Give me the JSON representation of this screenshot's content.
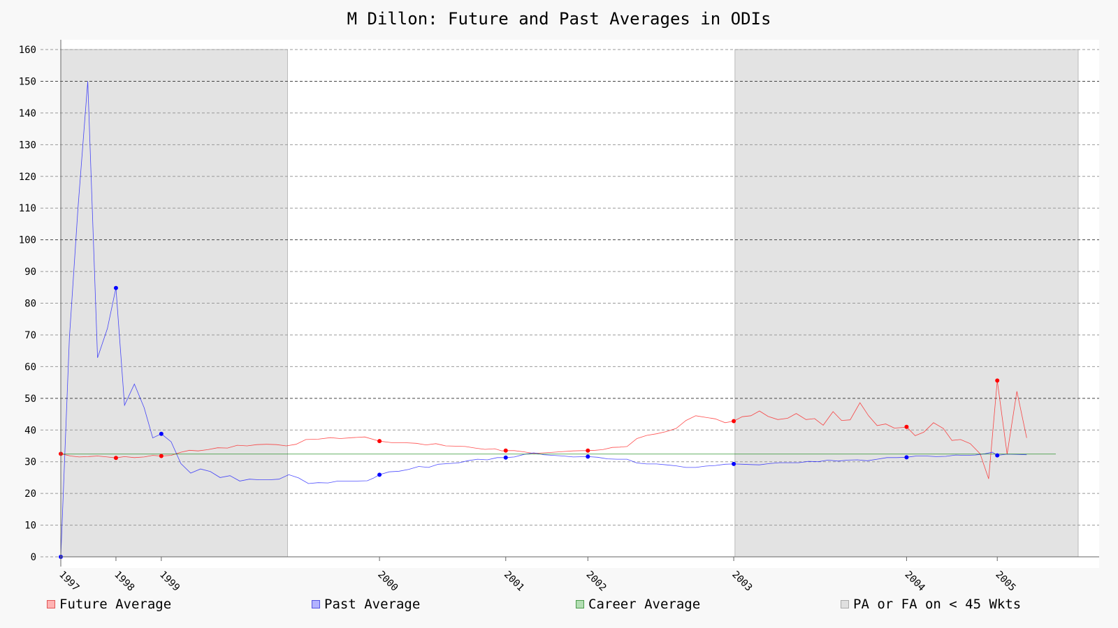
{
  "chart_data": {
    "type": "line",
    "title": "M Dillon: Future and Past Averages in ODIs",
    "xlabel": "",
    "ylabel": "",
    "ylim": [
      0,
      160
    ],
    "xlim": [
      1997.0,
      2005.3
    ],
    "yticks": [
      0,
      10,
      20,
      30,
      40,
      50,
      60,
      70,
      80,
      90,
      100,
      110,
      120,
      130,
      140,
      150,
      160
    ],
    "xticks": [
      {
        "label": "1997",
        "x": 1997.0
      },
      {
        "label": "1998",
        "x": 1997.45
      },
      {
        "label": "1999",
        "x": 1997.82
      },
      {
        "label": "2000",
        "x": 1999.6
      },
      {
        "label": "2001",
        "x": 2000.63
      },
      {
        "label": "2002",
        "x": 2001.3
      },
      {
        "label": "2003",
        "x": 2002.49
      },
      {
        "label": "2004",
        "x": 2003.9
      },
      {
        "label": "2005",
        "x": 2004.64
      }
    ],
    "grid": true,
    "legend_position": "bottom",
    "career_average": 32.4,
    "shaded_regions": [
      {
        "label": "PA or FA on < 45 Wkts",
        "from": 1997.0,
        "to": 1998.85
      },
      {
        "label": "PA or FA on < 45 Wkts",
        "from": 2002.5,
        "to": 2005.3
      }
    ],
    "series": [
      {
        "name": "Future Average",
        "color": "#ff0000",
        "points": [
          [
            1997.0,
            32.5
          ],
          [
            1997.08,
            31.8
          ],
          [
            1997.15,
            31.5
          ],
          [
            1997.22,
            31.6
          ],
          [
            1997.3,
            31.8
          ],
          [
            1997.38,
            31.5
          ],
          [
            1997.45,
            31.2
          ],
          [
            1997.52,
            31.6
          ],
          [
            1997.6,
            31.3
          ],
          [
            1997.68,
            31.5
          ],
          [
            1997.75,
            32.0
          ],
          [
            1997.82,
            31.8
          ],
          [
            1997.9,
            32.0
          ],
          [
            1997.98,
            33.0
          ],
          [
            1998.05,
            33.6
          ],
          [
            1998.12,
            33.4
          ],
          [
            1998.2,
            33.8
          ],
          [
            1998.28,
            34.4
          ],
          [
            1998.36,
            34.3
          ],
          [
            1998.44,
            35.2
          ],
          [
            1998.52,
            35.0
          ],
          [
            1998.6,
            35.4
          ],
          [
            1998.68,
            35.5
          ],
          [
            1998.76,
            35.4
          ],
          [
            1998.84,
            35.0
          ],
          [
            1998.92,
            35.5
          ],
          [
            1999.0,
            37.0
          ],
          [
            1999.1,
            37.1
          ],
          [
            1999.2,
            37.6
          ],
          [
            1999.28,
            37.3
          ],
          [
            1999.38,
            37.6
          ],
          [
            1999.48,
            37.8
          ],
          [
            1999.6,
            36.5
          ],
          [
            1999.7,
            36.0
          ],
          [
            1999.8,
            36.0
          ],
          [
            1999.9,
            35.8
          ],
          [
            1999.98,
            35.3
          ],
          [
            2000.06,
            35.7
          ],
          [
            2000.14,
            35.0
          ],
          [
            2000.22,
            34.9
          ],
          [
            2000.3,
            34.8
          ],
          [
            2000.38,
            34.3
          ],
          [
            2000.46,
            33.9
          ],
          [
            2000.54,
            34.1
          ],
          [
            2000.6,
            33.4
          ],
          [
            2000.63,
            33.5
          ],
          [
            2000.7,
            33.5
          ],
          [
            2000.78,
            33.1
          ],
          [
            2000.86,
            32.6
          ],
          [
            2000.94,
            32.8
          ],
          [
            2001.02,
            33.0
          ],
          [
            2001.1,
            33.2
          ],
          [
            2001.18,
            33.4
          ],
          [
            2001.26,
            33.5
          ],
          [
            2001.3,
            33.5
          ],
          [
            2001.36,
            33.6
          ],
          [
            2001.42,
            33.8
          ],
          [
            2001.5,
            34.5
          ],
          [
            2001.56,
            34.6
          ],
          [
            2001.62,
            34.8
          ],
          [
            2001.7,
            37.3
          ],
          [
            2001.78,
            38.3
          ],
          [
            2001.86,
            38.8
          ],
          [
            2001.94,
            39.5
          ],
          [
            2002.02,
            40.5
          ],
          [
            2002.1,
            43.0
          ],
          [
            2002.18,
            44.5
          ],
          [
            2002.26,
            44.0
          ],
          [
            2002.34,
            43.5
          ],
          [
            2002.42,
            42.3
          ],
          [
            2002.49,
            42.8
          ],
          [
            2002.56,
            44.2
          ],
          [
            2002.63,
            44.5
          ],
          [
            2002.7,
            46.0
          ],
          [
            2002.77,
            44.3
          ],
          [
            2002.85,
            43.3
          ],
          [
            2002.93,
            43.7
          ],
          [
            2003.0,
            45.2
          ],
          [
            2003.08,
            43.3
          ],
          [
            2003.15,
            43.6
          ],
          [
            2003.22,
            41.5
          ],
          [
            2003.3,
            45.8
          ],
          [
            2003.37,
            43.0
          ],
          [
            2003.44,
            43.2
          ],
          [
            2003.52,
            48.6
          ],
          [
            2003.59,
            44.5
          ],
          [
            2003.66,
            41.4
          ],
          [
            2003.73,
            41.9
          ],
          [
            2003.8,
            40.6
          ],
          [
            2003.87,
            40.8
          ],
          [
            2003.9,
            41.0
          ],
          [
            2003.97,
            38.2
          ],
          [
            2004.04,
            39.3
          ],
          [
            2004.12,
            42.3
          ],
          [
            2004.2,
            40.5
          ],
          [
            2004.27,
            36.7
          ],
          [
            2004.34,
            37.0
          ],
          [
            2004.42,
            35.7
          ],
          [
            2004.5,
            32.5
          ],
          [
            2004.57,
            24.6
          ],
          [
            2004.64,
            55.6
          ],
          [
            2004.72,
            32.4
          ],
          [
            2004.8,
            52.2
          ],
          [
            2004.88,
            37.5
          ]
        ]
      },
      {
        "name": "Past Average",
        "color": "#0000ff",
        "points": [
          [
            1997.0,
            0.0
          ],
          [
            1997.07,
            69.0
          ],
          [
            1997.14,
            110.0
          ],
          [
            1997.22,
            150.0
          ],
          [
            1997.3,
            62.8
          ],
          [
            1997.38,
            72.0
          ],
          [
            1997.45,
            84.8
          ],
          [
            1997.52,
            47.8
          ],
          [
            1997.6,
            54.5
          ],
          [
            1997.68,
            47.0
          ],
          [
            1997.75,
            37.5
          ],
          [
            1997.82,
            38.8
          ],
          [
            1997.9,
            36.3
          ],
          [
            1997.98,
            29.4
          ],
          [
            1998.06,
            26.4
          ],
          [
            1998.14,
            27.7
          ],
          [
            1998.22,
            26.9
          ],
          [
            1998.3,
            25.0
          ],
          [
            1998.38,
            25.6
          ],
          [
            1998.46,
            23.9
          ],
          [
            1998.54,
            24.5
          ],
          [
            1998.62,
            24.3
          ],
          [
            1998.7,
            24.3
          ],
          [
            1998.78,
            24.5
          ],
          [
            1998.86,
            25.9
          ],
          [
            1998.94,
            24.9
          ],
          [
            1999.02,
            23.1
          ],
          [
            1999.1,
            23.4
          ],
          [
            1999.18,
            23.3
          ],
          [
            1999.26,
            23.9
          ],
          [
            1999.34,
            23.9
          ],
          [
            1999.42,
            23.9
          ],
          [
            1999.5,
            24.0
          ],
          [
            1999.55,
            24.8
          ],
          [
            1999.6,
            25.9
          ],
          [
            1999.68,
            26.8
          ],
          [
            1999.76,
            27.0
          ],
          [
            1999.84,
            27.6
          ],
          [
            1999.92,
            28.5
          ],
          [
            2000.0,
            28.2
          ],
          [
            2000.08,
            29.2
          ],
          [
            2000.16,
            29.4
          ],
          [
            2000.24,
            29.6
          ],
          [
            2000.32,
            30.3
          ],
          [
            2000.4,
            30.8
          ],
          [
            2000.48,
            30.6
          ],
          [
            2000.56,
            31.3
          ],
          [
            2000.63,
            31.3
          ],
          [
            2000.7,
            31.5
          ],
          [
            2000.78,
            32.3
          ],
          [
            2000.86,
            32.8
          ],
          [
            2000.94,
            32.2
          ],
          [
            2001.02,
            32.0
          ],
          [
            2001.1,
            31.8
          ],
          [
            2001.18,
            31.5
          ],
          [
            2001.3,
            31.6
          ],
          [
            2001.38,
            31.4
          ],
          [
            2001.46,
            30.9
          ],
          [
            2001.54,
            30.8
          ],
          [
            2001.62,
            30.8
          ],
          [
            2001.7,
            29.6
          ],
          [
            2001.78,
            29.3
          ],
          [
            2001.86,
            29.3
          ],
          [
            2001.94,
            29.0
          ],
          [
            2002.02,
            28.7
          ],
          [
            2002.1,
            28.2
          ],
          [
            2002.18,
            28.2
          ],
          [
            2002.26,
            28.6
          ],
          [
            2002.34,
            28.8
          ],
          [
            2002.42,
            29.2
          ],
          [
            2002.49,
            29.3
          ],
          [
            2002.56,
            29.2
          ],
          [
            2002.63,
            29.1
          ],
          [
            2002.7,
            29.0
          ],
          [
            2002.78,
            29.4
          ],
          [
            2002.86,
            29.7
          ],
          [
            2002.94,
            29.7
          ],
          [
            2003.02,
            29.7
          ],
          [
            2003.1,
            30.1
          ],
          [
            2003.18,
            30.0
          ],
          [
            2003.26,
            30.5
          ],
          [
            2003.34,
            30.2
          ],
          [
            2003.42,
            30.5
          ],
          [
            2003.5,
            30.6
          ],
          [
            2003.58,
            30.3
          ],
          [
            2003.66,
            30.8
          ],
          [
            2003.74,
            31.3
          ],
          [
            2003.82,
            31.3
          ],
          [
            2003.9,
            31.4
          ],
          [
            2003.98,
            31.8
          ],
          [
            2004.06,
            31.8
          ],
          [
            2004.14,
            31.6
          ],
          [
            2004.22,
            31.7
          ],
          [
            2004.3,
            32.1
          ],
          [
            2004.38,
            32.0
          ],
          [
            2004.46,
            32.1
          ],
          [
            2004.54,
            32.5
          ],
          [
            2004.6,
            33.0
          ],
          [
            2004.64,
            32.0
          ],
          [
            2004.72,
            32.4
          ],
          [
            2004.8,
            32.3
          ],
          [
            2004.88,
            32.2
          ]
        ]
      },
      {
        "name": "Career Average",
        "color": "#008000",
        "value": 32.4
      }
    ],
    "future_markers": [
      [
        1997.0,
        32.5
      ],
      [
        1997.45,
        31.2
      ],
      [
        1997.82,
        31.8
      ],
      [
        1999.6,
        36.5
      ],
      [
        2000.63,
        33.5
      ],
      [
        2001.3,
        33.5
      ],
      [
        2002.49,
        42.8
      ],
      [
        2003.9,
        41.0
      ],
      [
        2004.64,
        55.6
      ]
    ],
    "past_markers": [
      [
        1997.0,
        0.0
      ],
      [
        1997.45,
        84.8
      ],
      [
        1997.82,
        38.8
      ],
      [
        1999.6,
        25.9
      ],
      [
        2000.63,
        31.3
      ],
      [
        2001.3,
        31.6
      ],
      [
        2002.49,
        29.3
      ],
      [
        2003.9,
        31.4
      ],
      [
        2004.64,
        32.0
      ]
    ]
  },
  "legend": {
    "future_label": "Future Average",
    "past_label": "Past Average",
    "career_label": "Career Average",
    "shade_label": "PA or FA on < 45 Wkts",
    "future_color": "#ff9999",
    "past_color": "#9999ff",
    "career_color": "#99cc99",
    "shade_color": "#dddddd"
  }
}
